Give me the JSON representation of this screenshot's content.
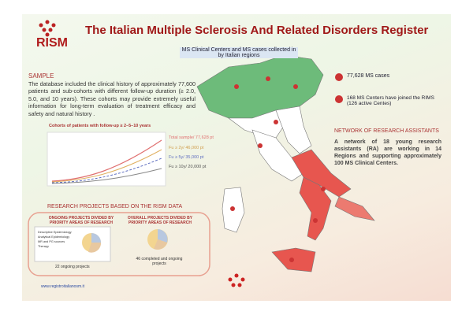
{
  "header": {
    "logo": "RISM",
    "title": "The Italian Multiple Sclerosis And Related Disorders Register"
  },
  "map": {
    "caption": "MS Clinical Centers and MS cases collected in by Italian regions"
  },
  "sample": {
    "heading": "SAMPLE",
    "text": "The database included the clinical history of approximately 77,600 patients and sub-cohorts with different follow-up duration (≥ 2.0, 5.0, and 10 years). These cohorts may provide extremely useful information for long-term evaluation of treatment efficacy and safety and natural history .",
    "chart_title": "Cohorts of patients with follow-up ≥ 2–5–10 years",
    "labels": [
      "Total sample/ 77,628 pt",
      "Fu ≥ 2y/ 46,000 pt",
      "Fu ≥ 5y/ 35,000 pt",
      "Fu ≥ 10y/ 20,000 pt"
    ]
  },
  "stats": {
    "cases": "77,628 MS cases",
    "centers": "168 MS Centers have joined the RIMS (126 active Centes)"
  },
  "network": {
    "heading": "NETWORK OF RESEARCH ASSISTANTS",
    "text": "A network of 18 young research assistants (RA) are working in 14 Regions and supporting approximately 100 MS Clinical Centers."
  },
  "research": {
    "heading": "RESEARCH PROJECTS BASED ON THE RISM DATA",
    "boxes": [
      {
        "title": "ONGOING PROJECTS DIVIDED BY PRIORITY AREAS OF RESEARCH",
        "legend": [
          "Descriptive Epidemiology",
          "Analytical Epidemiology",
          "MR and PG sources",
          "Therapy"
        ],
        "caption": "22 ongoing projects"
      },
      {
        "title": "OVERALL PROJECTS DIVIDED BY PRIORITY AREAS OF RESEARCH",
        "caption": "46 completed and ongoing projects"
      }
    ]
  },
  "footer": {
    "url": "www.registroitalianosm.it"
  }
}
